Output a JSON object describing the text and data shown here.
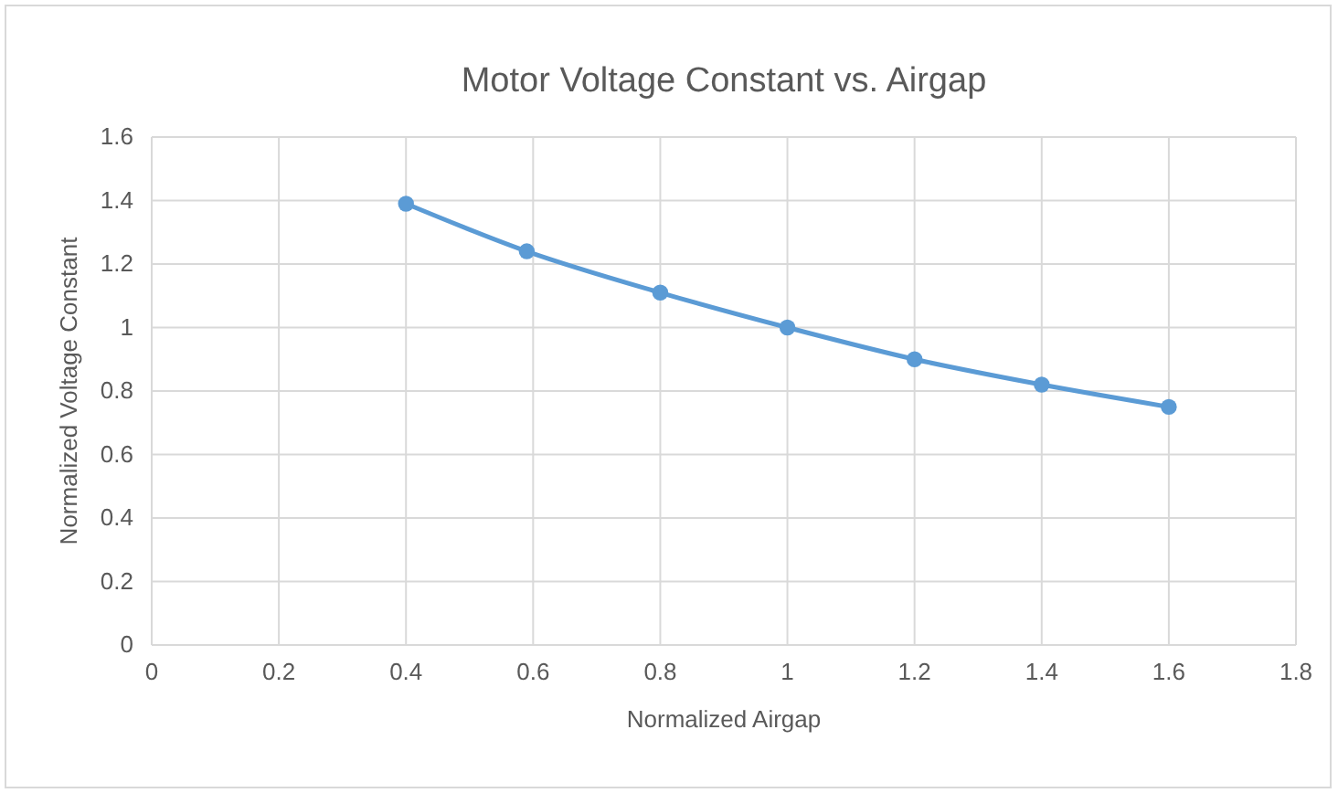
{
  "chart_data": {
    "type": "line",
    "title": "Motor Voltage Constant vs. Airgap",
    "xlabel": "Normalized Airgap",
    "ylabel": "Normalized Voltage Constant",
    "x": [
      0.4,
      0.59,
      0.8,
      1.0,
      1.2,
      1.4,
      1.6
    ],
    "series": [
      {
        "color": "#5b9bd5",
        "values": [
          1.39,
          1.24,
          1.11,
          1.0,
          0.9,
          0.82,
          0.75
        ]
      }
    ],
    "xlim": [
      0,
      1.8
    ],
    "xticks": [
      0,
      0.2,
      0.4,
      0.6,
      0.8,
      1,
      1.2,
      1.4,
      1.6,
      1.8
    ],
    "ylim": [
      0,
      1.6
    ],
    "yticks": [
      0,
      0.2,
      0.4,
      0.6,
      0.8,
      1,
      1.2,
      1.4,
      1.6
    ],
    "grid": true,
    "marker": "circle",
    "line_style": "solid"
  }
}
